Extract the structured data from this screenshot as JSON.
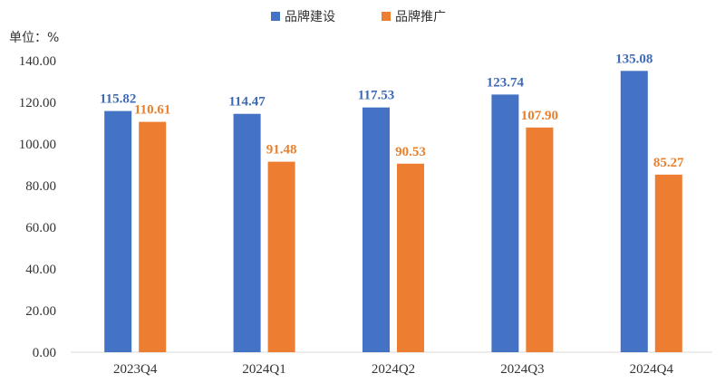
{
  "chart_data": {
    "type": "bar",
    "unit_label": "单位：%",
    "categories": [
      "2023Q4",
      "2024Q1",
      "2024Q2",
      "2024Q3",
      "2024Q4"
    ],
    "series": [
      {
        "name": "品牌建设",
        "color": "#4472C4",
        "label_color": "#3F6BB5",
        "values": [
          115.82,
          114.47,
          117.53,
          123.74,
          135.08
        ],
        "value_labels": [
          "115.82",
          "114.47",
          "117.53",
          "123.74",
          "135.08"
        ]
      },
      {
        "name": "品牌推广",
        "color": "#ED7D31",
        "label_color": "#E8802E",
        "values": [
          110.61,
          91.48,
          90.53,
          107.9,
          85.27
        ],
        "value_labels": [
          "110.61",
          "91.48",
          "90.53",
          "107.90",
          "85.27"
        ]
      }
    ],
    "yticks": [
      "0.00",
      "20.00",
      "40.00",
      "60.00",
      "80.00",
      "100.00",
      "120.00",
      "140.00"
    ],
    "ylim": [
      0,
      140
    ],
    "grid": false,
    "legend_position": "top"
  }
}
